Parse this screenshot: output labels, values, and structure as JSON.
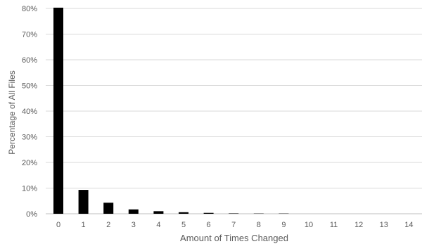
{
  "chart_data": {
    "type": "bar",
    "title": "",
    "xlabel": "Amount of Times Changed",
    "ylabel": "Percentage of All Files",
    "categories": [
      "0",
      "1",
      "2",
      "3",
      "4",
      "5",
      "6",
      "7",
      "8",
      "9",
      "10",
      "11",
      "12",
      "13",
      "14"
    ],
    "values": [
      81.3,
      9.3,
      4.3,
      1.7,
      1.0,
      0.6,
      0.35,
      0.15,
      0.1,
      0.1,
      0,
      0,
      0,
      0,
      0
    ],
    "ylim": [
      0,
      80
    ],
    "yticks": [
      "0%",
      "10%",
      "20%",
      "30%",
      "40%",
      "50%",
      "60%",
      "70%",
      "80%"
    ],
    "grid": true,
    "legend": "none",
    "colors": {
      "bar": "#000000",
      "grid": "#d9d9d9",
      "text": "#595959"
    }
  }
}
